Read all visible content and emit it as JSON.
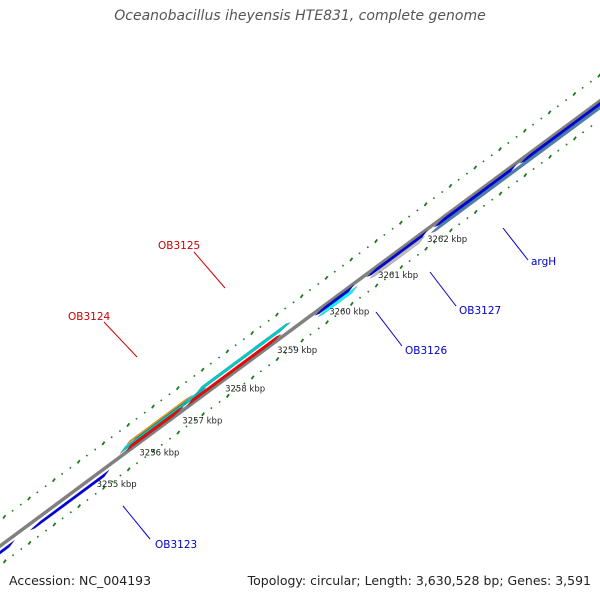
{
  "title": "Oceanobacillus iheyensis HTE831, complete genome",
  "footer": {
    "accession": "Accession: NC_004193",
    "summary": "Topology: circular; Length: 3,630,528 bp; Genes: 3,591"
  },
  "colors": {
    "backbone": "#808080",
    "ticks": "#1a7a1a",
    "forward_label": "#cc0000",
    "reverse_label": "#0000cc"
  },
  "scale_labels": [
    "3255 kbp",
    "3256 kbp",
    "3257 kbp",
    "3258 kbp",
    "3259 kbp",
    "3260 kbp",
    "3261 kbp",
    "3262 kbp"
  ],
  "gene_labels": [
    {
      "name": "OB3123",
      "color": "#0000cc"
    },
    {
      "name": "OB3124",
      "color": "#cc0000"
    },
    {
      "name": "OB3125",
      "color": "#cc0000"
    },
    {
      "name": "OB3126",
      "color": "#0000cc"
    },
    {
      "name": "OB3127",
      "color": "#0000cc"
    },
    {
      "name": "argH",
      "color": "#0000cc"
    }
  ]
}
